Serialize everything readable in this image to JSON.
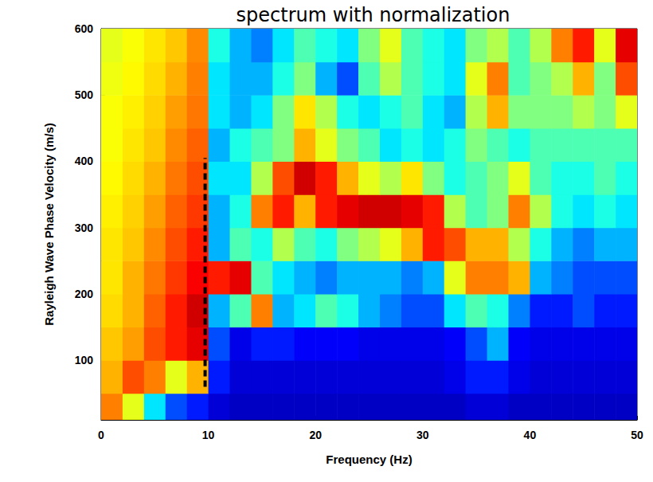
{
  "chart_data": {
    "type": "heatmap",
    "title": "spectrum with normalization",
    "x_label": "Frequency (Hz)",
    "y_label": "Rayleigh Wave Phase Velocity (m/s)",
    "xlim": [
      0,
      50
    ],
    "ylim": [
      10,
      600
    ],
    "xticks": [
      0,
      10,
      20,
      30,
      40,
      50
    ],
    "yticks": [
      100,
      200,
      300,
      400,
      500,
      600
    ],
    "grid": false,
    "cells": {
      "x_edges": [
        0,
        2,
        4,
        6,
        8,
        10,
        12,
        14,
        16,
        18,
        20,
        22,
        24,
        26,
        28,
        30,
        32,
        34,
        36,
        38,
        40,
        42,
        44,
        46,
        48,
        50
      ],
      "y_edges": [
        10,
        50,
        100,
        150,
        200,
        250,
        300,
        350,
        400,
        450,
        500,
        550,
        600
      ],
      "zlim": [
        0,
        1
      ],
      "values": [
        [
          0.75,
          0.6,
          0.35,
          0.2,
          0.15,
          0.08,
          0.06,
          0.06,
          0.06,
          0.06,
          0.06,
          0.06,
          0.06,
          0.06,
          0.06,
          0.06,
          0.06,
          0.08,
          0.08,
          0.06,
          0.06,
          0.06,
          0.06,
          0.06,
          0.06
        ],
        [
          0.7,
          0.8,
          0.75,
          0.6,
          0.7,
          0.15,
          0.08,
          0.08,
          0.08,
          0.08,
          0.08,
          0.08,
          0.08,
          0.08,
          0.08,
          0.08,
          0.1,
          0.15,
          0.15,
          0.1,
          0.08,
          0.08,
          0.08,
          0.08,
          0.08
        ],
        [
          0.68,
          0.72,
          0.8,
          0.85,
          0.9,
          0.2,
          0.1,
          0.15,
          0.15,
          0.12,
          0.12,
          0.12,
          0.1,
          0.1,
          0.1,
          0.1,
          0.12,
          0.2,
          0.3,
          0.12,
          0.1,
          0.1,
          0.1,
          0.1,
          0.1
        ],
        [
          0.66,
          0.7,
          0.78,
          0.85,
          0.92,
          0.3,
          0.45,
          0.75,
          0.3,
          0.35,
          0.45,
          0.4,
          0.3,
          0.25,
          0.2,
          0.2,
          0.35,
          0.45,
          0.4,
          0.25,
          0.15,
          0.15,
          0.2,
          0.15,
          0.15
        ],
        [
          0.65,
          0.7,
          0.76,
          0.82,
          0.88,
          0.85,
          0.9,
          0.45,
          0.35,
          0.3,
          0.25,
          0.3,
          0.3,
          0.3,
          0.25,
          0.3,
          0.6,
          0.75,
          0.75,
          0.7,
          0.3,
          0.25,
          0.2,
          0.2,
          0.2
        ],
        [
          0.65,
          0.68,
          0.74,
          0.8,
          0.85,
          0.3,
          0.45,
          0.4,
          0.55,
          0.45,
          0.4,
          0.5,
          0.55,
          0.6,
          0.7,
          0.85,
          0.8,
          0.7,
          0.7,
          0.55,
          0.4,
          0.3,
          0.25,
          0.3,
          0.3
        ],
        [
          0.64,
          0.67,
          0.72,
          0.78,
          0.82,
          0.3,
          0.4,
          0.75,
          0.85,
          0.7,
          0.85,
          0.9,
          0.92,
          0.92,
          0.9,
          0.85,
          0.55,
          0.45,
          0.5,
          0.75,
          0.55,
          0.4,
          0.35,
          0.4,
          0.35
        ],
        [
          0.63,
          0.66,
          0.7,
          0.76,
          0.8,
          0.35,
          0.35,
          0.55,
          0.8,
          0.92,
          0.85,
          0.7,
          0.6,
          0.55,
          0.65,
          0.5,
          0.4,
          0.45,
          0.5,
          0.6,
          0.45,
          0.4,
          0.4,
          0.45,
          0.4
        ],
        [
          0.62,
          0.65,
          0.68,
          0.74,
          0.78,
          0.3,
          0.4,
          0.45,
          0.5,
          0.7,
          0.6,
          0.5,
          0.45,
          0.35,
          0.4,
          0.35,
          0.4,
          0.5,
          0.45,
          0.4,
          0.45,
          0.45,
          0.45,
          0.45,
          0.45
        ],
        [
          0.62,
          0.64,
          0.67,
          0.72,
          0.76,
          0.35,
          0.3,
          0.35,
          0.5,
          0.65,
          0.55,
          0.4,
          0.35,
          0.4,
          0.45,
          0.35,
          0.3,
          0.55,
          0.7,
          0.5,
          0.5,
          0.5,
          0.55,
          0.5,
          0.6
        ],
        [
          0.61,
          0.63,
          0.66,
          0.7,
          0.75,
          0.35,
          0.3,
          0.3,
          0.4,
          0.5,
          0.3,
          0.2,
          0.45,
          0.55,
          0.45,
          0.4,
          0.35,
          0.6,
          0.75,
          0.45,
          0.5,
          0.55,
          0.7,
          0.5,
          0.8
        ],
        [
          0.6,
          0.62,
          0.65,
          0.68,
          0.74,
          0.4,
          0.3,
          0.25,
          0.35,
          0.45,
          0.4,
          0.35,
          0.5,
          0.6,
          0.45,
          0.4,
          0.35,
          0.5,
          0.55,
          0.45,
          0.55,
          0.75,
          0.85,
          0.6,
          0.9
        ]
      ]
    },
    "lines": [
      {
        "x": [
          9.7,
          9.7
        ],
        "y": [
          60,
          405
        ],
        "color": "#000000",
        "line_style": "dashed"
      }
    ]
  }
}
